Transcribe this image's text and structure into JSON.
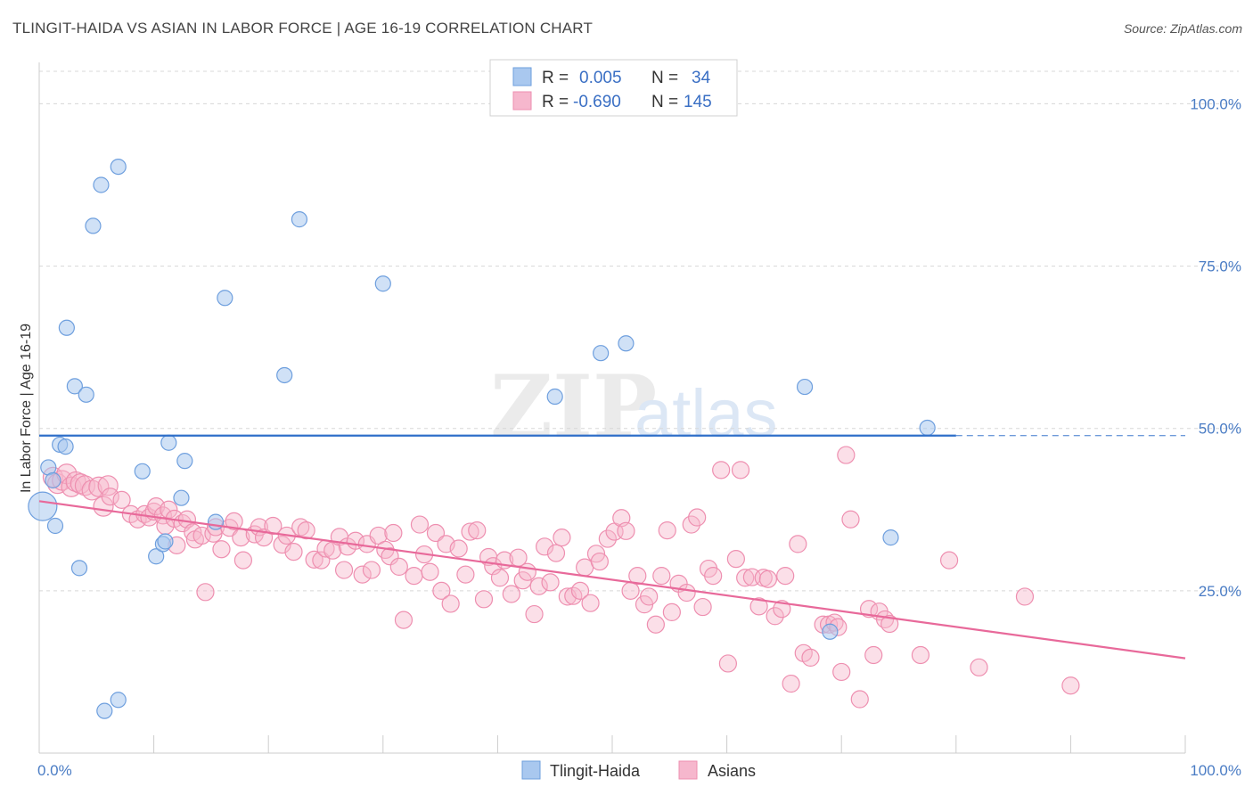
{
  "title": "TLINGIT-HAIDA VS ASIAN IN LABOR FORCE | AGE 16-19 CORRELATION CHART",
  "source": "Source: ZipAtlas.com",
  "watermark": {
    "zip": "ZIP",
    "atlas": "atlas"
  },
  "colors": {
    "blue_fill": "#a9c8ef",
    "blue_stroke": "#6e9fde",
    "blue_line": "#2f6fc9",
    "pink_fill": "#f6b7cd",
    "pink_stroke": "#ee8fb0",
    "pink_line": "#e8699a",
    "grid": "#d8d8d8",
    "axis_label": "#4a7cc4"
  },
  "legend": {
    "rows": [
      {
        "r_label": "R =",
        "r_value": "0.005",
        "n_label": "N =",
        "n_value": "34"
      },
      {
        "r_label": "R =",
        "r_value": "-0.690",
        "n_label": "N =",
        "n_value": "145"
      }
    ]
  },
  "bottom_legend": {
    "series1": "Tlingit-Haida",
    "series2": "Asians"
  },
  "chart_data": {
    "type": "scatter",
    "title": "TLINGIT-HAIDA VS ASIAN IN LABOR FORCE | AGE 16-19 CORRELATION CHART",
    "xlabel": "",
    "ylabel": "In Labor Force | Age 16-19",
    "xlim": [
      0,
      100
    ],
    "ylim": [
      0,
      105
    ],
    "x_tick_labels": [
      "0.0%",
      "100.0%"
    ],
    "y_ticks": [
      25,
      50,
      75,
      100
    ],
    "y_tick_labels": [
      "25.0%",
      "50.0%",
      "75.0%",
      "100.0%"
    ],
    "grid": true,
    "series": [
      {
        "name": "Tlingit-Haida",
        "trend": {
          "x": [
            0,
            80
          ],
          "y": [
            48.9,
            48.9
          ],
          "dashed_to": 100
        },
        "points": [
          [
            0.3,
            38
          ],
          [
            0.8,
            44
          ],
          [
            1.2,
            42
          ],
          [
            1.4,
            35
          ],
          [
            1.8,
            47.5
          ],
          [
            2.3,
            47.2
          ],
          [
            2.4,
            65.5
          ],
          [
            3.1,
            56.5
          ],
          [
            3.5,
            28.5
          ],
          [
            4.1,
            55.2
          ],
          [
            4.7,
            81.2
          ],
          [
            5.4,
            87.5
          ],
          [
            5.7,
            6.5
          ],
          [
            6.9,
            90.3
          ],
          [
            6.9,
            8.2
          ],
          [
            9.0,
            43.4
          ],
          [
            10.2,
            30.3
          ],
          [
            10.8,
            32.2
          ],
          [
            11.0,
            32.6
          ],
          [
            11.3,
            47.8
          ],
          [
            12.4,
            39.3
          ],
          [
            12.7,
            45
          ],
          [
            15.4,
            35.6
          ],
          [
            16.2,
            70.1
          ],
          [
            21.4,
            58.2
          ],
          [
            22.7,
            82.2
          ],
          [
            30.0,
            72.3
          ],
          [
            45.0,
            54.9
          ],
          [
            49.0,
            61.6
          ],
          [
            51.2,
            63.1
          ],
          [
            66.8,
            56.4
          ],
          [
            69.0,
            18.7
          ],
          [
            74.3,
            33.2
          ],
          [
            77.5,
            50.1
          ]
        ]
      },
      {
        "name": "Asians",
        "trend": {
          "x": [
            0,
            100
          ],
          "y": [
            38.8,
            14.6
          ]
        },
        "points": [
          [
            1.2,
            42.5
          ],
          [
            1.6,
            41.5
          ],
          [
            2,
            42
          ],
          [
            2.4,
            43
          ],
          [
            2.8,
            41
          ],
          [
            3.2,
            41.8
          ],
          [
            3.6,
            41.5
          ],
          [
            4,
            41.2
          ],
          [
            4.6,
            40.5
          ],
          [
            5.2,
            41
          ],
          [
            5.6,
            38
          ],
          [
            6,
            41.2
          ],
          [
            6.2,
            39.5
          ],
          [
            7.2,
            39
          ],
          [
            8.0,
            36.8
          ],
          [
            8.6,
            36
          ],
          [
            9.2,
            36.8
          ],
          [
            9.6,
            36.3
          ],
          [
            10.0,
            37.2
          ],
          [
            10.2,
            38
          ],
          [
            10.8,
            36.6
          ],
          [
            11.3,
            37.5
          ],
          [
            11.0,
            35
          ],
          [
            11.8,
            36.1
          ],
          [
            12.0,
            32
          ],
          [
            12.5,
            35.4
          ],
          [
            12.9,
            36
          ],
          [
            13.4,
            34
          ],
          [
            13.6,
            32.9
          ],
          [
            14.2,
            33.5
          ],
          [
            14.5,
            24.8
          ],
          [
            15.2,
            33.8
          ],
          [
            15.4,
            34.8
          ],
          [
            15.9,
            31.4
          ],
          [
            16.6,
            34.7
          ],
          [
            17.0,
            35.7
          ],
          [
            17.6,
            33.2
          ],
          [
            17.8,
            29.7
          ],
          [
            18.8,
            33.7
          ],
          [
            19.2,
            34.8
          ],
          [
            19.6,
            33.2
          ],
          [
            20.4,
            35
          ],
          [
            21.2,
            32.1
          ],
          [
            21.6,
            33.5
          ],
          [
            22.2,
            31
          ],
          [
            22.8,
            34.8
          ],
          [
            23.3,
            34.3
          ],
          [
            24.0,
            29.8
          ],
          [
            24.6,
            29.7
          ],
          [
            25.0,
            31.5
          ],
          [
            25.6,
            31.2
          ],
          [
            26.2,
            33.3
          ],
          [
            26.6,
            28.2
          ],
          [
            26.9,
            31.8
          ],
          [
            27.6,
            32.7
          ],
          [
            28.2,
            27.5
          ],
          [
            28.6,
            32.2
          ],
          [
            29.0,
            28.2
          ],
          [
            29.6,
            33.5
          ],
          [
            30.2,
            31.3
          ],
          [
            30.6,
            30.3
          ],
          [
            30.9,
            33.9
          ],
          [
            31.4,
            28.7
          ],
          [
            31.8,
            20.5
          ],
          [
            32.7,
            27.3
          ],
          [
            33.2,
            35.2
          ],
          [
            33.6,
            30.6
          ],
          [
            34.1,
            27.9
          ],
          [
            34.6,
            33.9
          ],
          [
            35.1,
            25
          ],
          [
            35.5,
            32.2
          ],
          [
            35.9,
            23
          ],
          [
            36.6,
            31.5
          ],
          [
            37.2,
            27.5
          ],
          [
            37.6,
            34.1
          ],
          [
            38.2,
            34.3
          ],
          [
            38.8,
            23.7
          ],
          [
            39.2,
            30.2
          ],
          [
            39.6,
            28.8
          ],
          [
            40.2,
            27
          ],
          [
            40.6,
            29.7
          ],
          [
            41.2,
            24.5
          ],
          [
            41.8,
            30.1
          ],
          [
            42.2,
            26.6
          ],
          [
            42.6,
            27.9
          ],
          [
            43.2,
            21.4
          ],
          [
            43.6,
            25.7
          ],
          [
            44.1,
            31.8
          ],
          [
            44.6,
            26.3
          ],
          [
            45.1,
            30.8
          ],
          [
            45.6,
            33.2
          ],
          [
            46.1,
            24.1
          ],
          [
            46.6,
            24.2
          ],
          [
            47.2,
            25
          ],
          [
            47.6,
            28.6
          ],
          [
            48.1,
            23.1
          ],
          [
            48.6,
            30.7
          ],
          [
            48.9,
            29.5
          ],
          [
            49.6,
            33
          ],
          [
            50.2,
            34.1
          ],
          [
            50.8,
            36.2
          ],
          [
            51.2,
            34.2
          ],
          [
            51.6,
            25
          ],
          [
            52.2,
            27.3
          ],
          [
            52.8,
            22.9
          ],
          [
            53.2,
            24.1
          ],
          [
            53.8,
            19.8
          ],
          [
            54.3,
            27.3
          ],
          [
            54.8,
            34.3
          ],
          [
            55.2,
            21.7
          ],
          [
            55.8,
            26.1
          ],
          [
            56.5,
            24.7
          ],
          [
            56.9,
            35.2
          ],
          [
            57.4,
            36.3
          ],
          [
            57.9,
            22.5
          ],
          [
            58.4,
            28.4
          ],
          [
            58.8,
            27.3
          ],
          [
            59.5,
            43.6
          ],
          [
            60.1,
            13.8
          ],
          [
            60.8,
            29.9
          ],
          [
            61.2,
            43.6
          ],
          [
            61.6,
            27
          ],
          [
            62.2,
            27.1
          ],
          [
            62.8,
            22.6
          ],
          [
            63.2,
            27
          ],
          [
            63.6,
            26.8
          ],
          [
            64.2,
            21.1
          ],
          [
            64.8,
            22.2
          ],
          [
            65.1,
            27.3
          ],
          [
            65.6,
            10.7
          ],
          [
            66.2,
            32.2
          ],
          [
            66.7,
            15.4
          ],
          [
            67.3,
            14.7
          ],
          [
            68.4,
            19.8
          ],
          [
            68.9,
            19.8
          ],
          [
            69.4,
            20.1
          ],
          [
            69.7,
            19.4
          ],
          [
            70.0,
            12.5
          ],
          [
            70.4,
            45.9
          ],
          [
            70.8,
            36
          ],
          [
            71.6,
            8.3
          ],
          [
            72.4,
            22.2
          ],
          [
            72.8,
            15.1
          ],
          [
            73.3,
            21.8
          ],
          [
            73.8,
            20.6
          ],
          [
            74.2,
            19.9
          ],
          [
            76.9,
            15.1
          ],
          [
            79.4,
            29.7
          ],
          [
            82.0,
            13.2
          ],
          [
            86.0,
            24.1
          ],
          [
            90.0,
            10.4
          ]
        ]
      }
    ]
  }
}
